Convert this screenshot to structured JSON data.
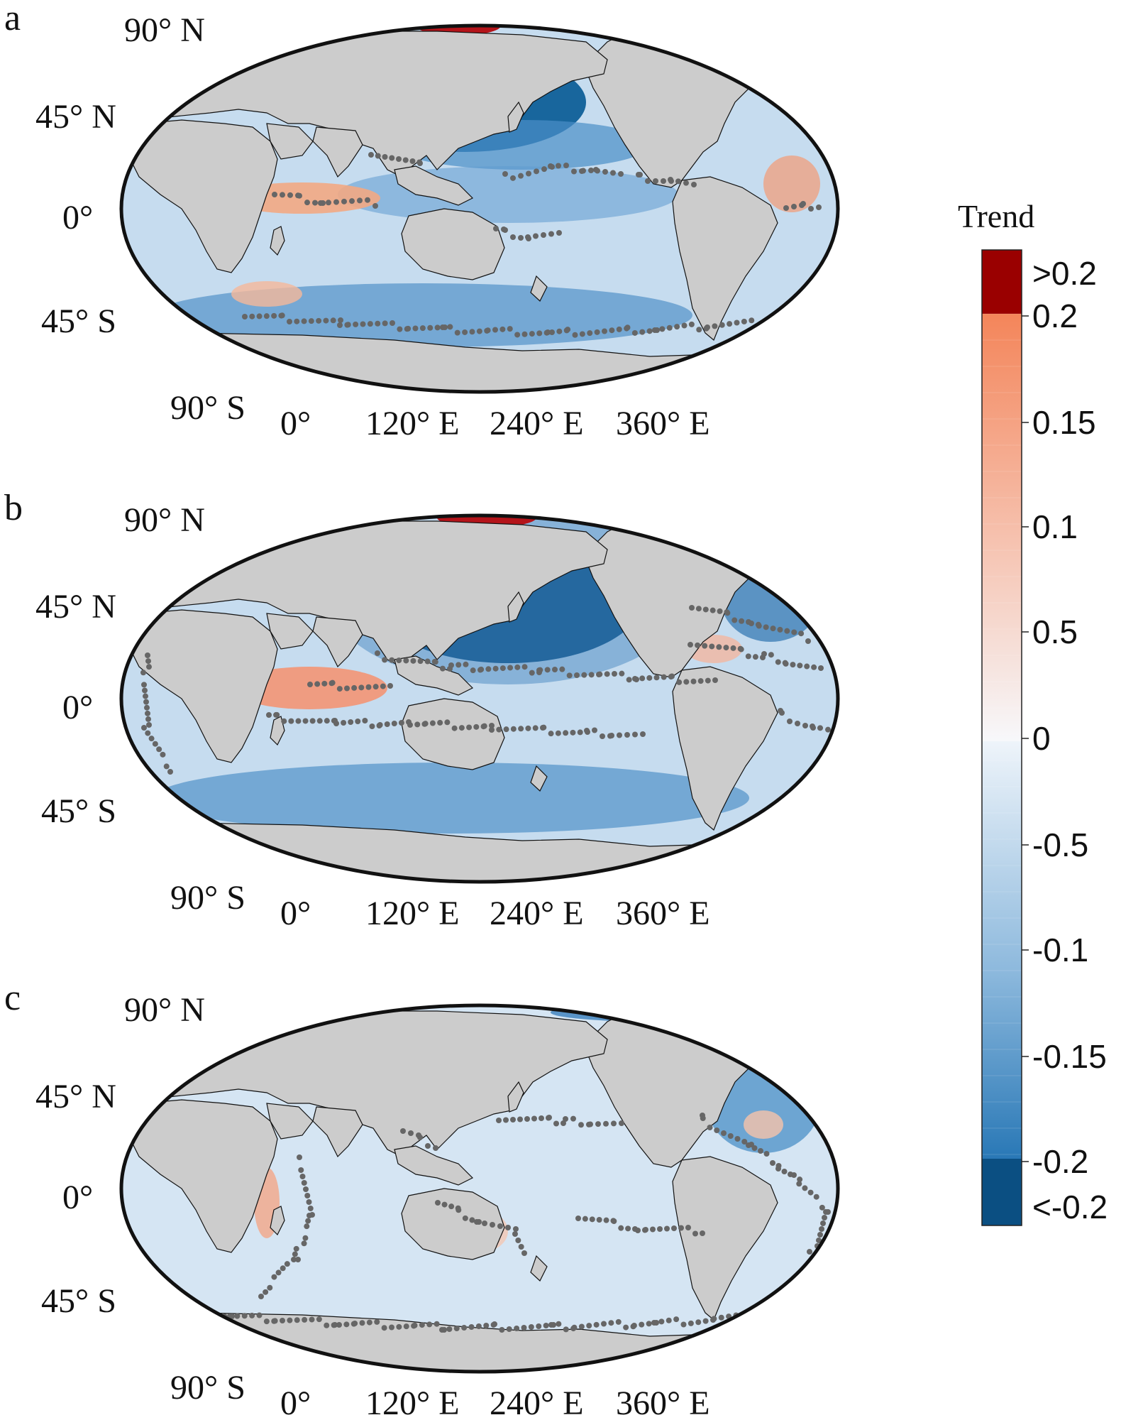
{
  "panels": [
    {
      "letter": "a",
      "lat_labels": [
        "90° N",
        "45° N",
        "0°",
        "45° S",
        "90° S"
      ],
      "lon_labels": [
        "0°",
        "120° E",
        "240° E",
        "360° E"
      ]
    },
    {
      "letter": "b",
      "lat_labels": [
        "90° N",
        "45° N",
        "0°",
        "45° S",
        "90° S"
      ],
      "lon_labels": [
        "0°",
        "120° E",
        "240° E",
        "360° E"
      ]
    },
    {
      "letter": "c",
      "lat_labels": [
        "90° N",
        "45° N",
        "0°",
        "45° S",
        "90° S"
      ],
      "lon_labels": [
        "0°",
        "120° E",
        "240° E",
        "360° E"
      ]
    }
  ],
  "colorbar": {
    "title": "Trend",
    "tick_labels": [
      ">0.2",
      "0.2",
      "0.15",
      "0.1",
      "0.5",
      "0",
      "-0.5",
      "-0.1",
      "-0.15",
      "-0.2",
      "<-0.2"
    ],
    "range": [
      -0.2,
      0.2
    ],
    "colors": {
      "max_over": "#9a0000",
      "min_under": "#0b4f82",
      "positive_high": "#f4855a",
      "neutral": "#f5f7fb",
      "negative_high": "#2978b6"
    }
  },
  "map_colors": {
    "land": "#cccccc",
    "ocean_base": "#c6dcef",
    "dots": "#666666",
    "coast": "#111111"
  }
}
